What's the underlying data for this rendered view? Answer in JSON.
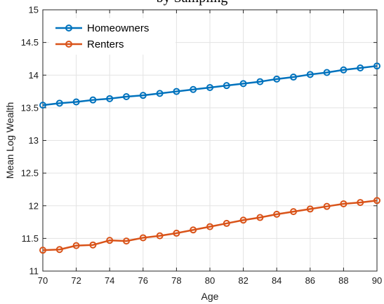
{
  "chart_data": {
    "type": "line",
    "title": "by Sampling",
    "xlabel": "Age",
    "ylabel": "Mean Log Wealth",
    "xlim": [
      70,
      90
    ],
    "ylim": [
      11,
      15
    ],
    "x_ticks": [
      70,
      72,
      74,
      76,
      78,
      80,
      82,
      84,
      86,
      88,
      90
    ],
    "y_ticks": [
      11,
      11.5,
      12,
      12.5,
      13,
      13.5,
      14,
      14.5,
      15
    ],
    "x_tick_labels": [
      "70",
      "72",
      "74",
      "76",
      "78",
      "80",
      "82",
      "84",
      "86",
      "88",
      "90"
    ],
    "y_tick_labels": [
      "11",
      "11.5",
      "12",
      "12.5",
      "13",
      "13.5",
      "14",
      "14.5",
      "15"
    ],
    "grid": true,
    "legend_position": "top-left",
    "x": [
      70,
      71,
      72,
      73,
      74,
      75,
      76,
      77,
      78,
      79,
      80,
      81,
      82,
      83,
      84,
      85,
      86,
      87,
      88,
      89,
      90
    ],
    "series": [
      {
        "name": "Homeowners",
        "color": "#0072BD",
        "values": [
          13.54,
          13.57,
          13.59,
          13.62,
          13.64,
          13.67,
          13.69,
          13.72,
          13.75,
          13.78,
          13.81,
          13.84,
          13.87,
          13.9,
          13.94,
          13.97,
          14.01,
          14.04,
          14.08,
          14.11,
          14.14
        ]
      },
      {
        "name": "Renters",
        "color": "#D95319",
        "values": [
          11.32,
          11.33,
          11.39,
          11.4,
          11.47,
          11.46,
          11.51,
          11.54,
          11.58,
          11.63,
          11.68,
          11.73,
          11.78,
          11.82,
          11.87,
          11.91,
          11.95,
          11.99,
          12.03,
          12.05,
          12.08
        ]
      }
    ]
  }
}
